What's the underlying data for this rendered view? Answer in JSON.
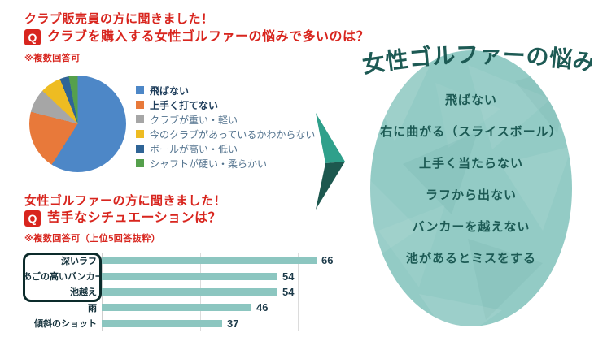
{
  "palette": {
    "red": "#d8251e",
    "bar_teal": "#8cc6c0",
    "bubble_bg": "#93cbc5",
    "dark_teal_text": "#1c5a54",
    "arrow_light": "#2fa08b",
    "arrow_dark": "#1d584f",
    "highlight_border": "#0c2b2b"
  },
  "survey1": {
    "intro": "クラブ販売員の方に聞きました！",
    "q_badge": "Q",
    "question": "クラブを購入する女性ゴルファーの悩みで多いのは？",
    "note": "※複数回答可"
  },
  "survey2": {
    "intro": "女性ゴルファーの方に聞きました！",
    "q_badge": "Q",
    "question": "苦手なシチュエーションは？",
    "note": "※複数回答可（上位5回答抜粋）"
  },
  "chart_data": [
    {
      "type": "pie",
      "categories": [
        "飛ばない",
        "上手く打てない",
        "クラブが重い・軽い",
        "今のクラブがあっているかわからない",
        "ボールが高い・低い",
        "シャフトが硬い・柔らかい"
      ],
      "values": [
        59,
        20,
        8,
        7,
        3,
        3
      ],
      "colors": [
        "#4d87c7",
        "#e8793a",
        "#a6a6a6",
        "#eebc22",
        "#2f6496",
        "#55a04c"
      ],
      "legend_position": "right",
      "start_angle_deg": 0,
      "direction": "clockwise"
    },
    {
      "type": "bar",
      "orientation": "horizontal",
      "categories": [
        "深いラフ",
        "あごの高いバンカー",
        "池越え",
        "雨",
        "傾斜のショット"
      ],
      "values": [
        66,
        54,
        54,
        46,
        37
      ],
      "xlim": [
        0,
        68
      ],
      "gridlines_x": [
        30,
        60
      ],
      "bar_color": "#8cc6c0",
      "highlighted_categories": [
        "深いラフ",
        "あごの高いバンカー",
        "池越え"
      ]
    }
  ],
  "result_bubble": {
    "title": "女性ゴルファーの悩み",
    "items": [
      "飛ばない",
      "右に曲がる（スライスボール）",
      "上手く当たらない",
      "ラフから出ない",
      "バンカーを越えない",
      "池があるとミスをする"
    ]
  }
}
